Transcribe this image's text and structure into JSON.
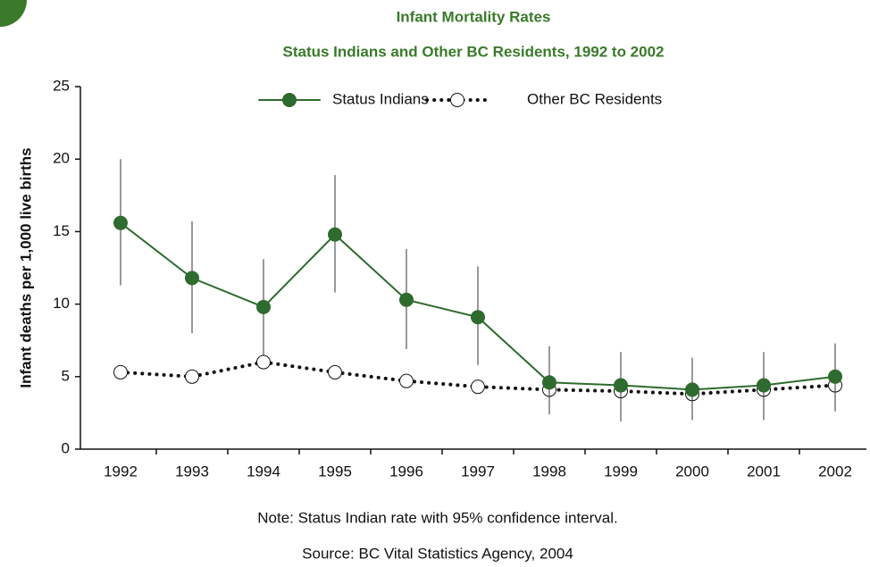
{
  "chart_data": {
    "type": "line",
    "title": "Infant Mortality Rates",
    "subtitle": "Status Indians and Other BC Residents, 1992 to 2002",
    "y_label": "Infant deaths per 1,000 live births",
    "notes": [
      "Note: Status Indian rate with 95% confidence interval.",
      "Source: BC Vital Statistics Agency, 2004"
    ],
    "categories": [
      "1992",
      "1993",
      "1994",
      "1995",
      "1996",
      "1997",
      "1998",
      "1999",
      "2000",
      "2001",
      "2002"
    ],
    "series": [
      {
        "name": "Status Indians",
        "color": "#2e6b2e",
        "marker": "filled",
        "style": "solid",
        "values": [
          15.6,
          11.8,
          9.8,
          14.8,
          10.3,
          9.1,
          4.6,
          4.4,
          4.1,
          4.4,
          5.0
        ],
        "lower": [
          11.3,
          8.0,
          6.5,
          10.8,
          6.9,
          5.8,
          2.4,
          1.9,
          2.0,
          2.0,
          2.6
        ],
        "upper": [
          20.0,
          15.7,
          13.1,
          18.9,
          13.8,
          12.6,
          7.1,
          6.7,
          6.3,
          6.7,
          7.3
        ]
      },
      {
        "name": "Other BC Residents",
        "color": "#111111",
        "marker": "open",
        "style": "dotted",
        "values": [
          5.3,
          5.0,
          6.0,
          5.3,
          4.7,
          4.3,
          4.1,
          4.0,
          3.8,
          4.1,
          4.4
        ]
      }
    ],
    "ylim": [
      0,
      25
    ],
    "yticks": [
      0,
      5,
      10,
      15,
      20,
      25
    ]
  }
}
